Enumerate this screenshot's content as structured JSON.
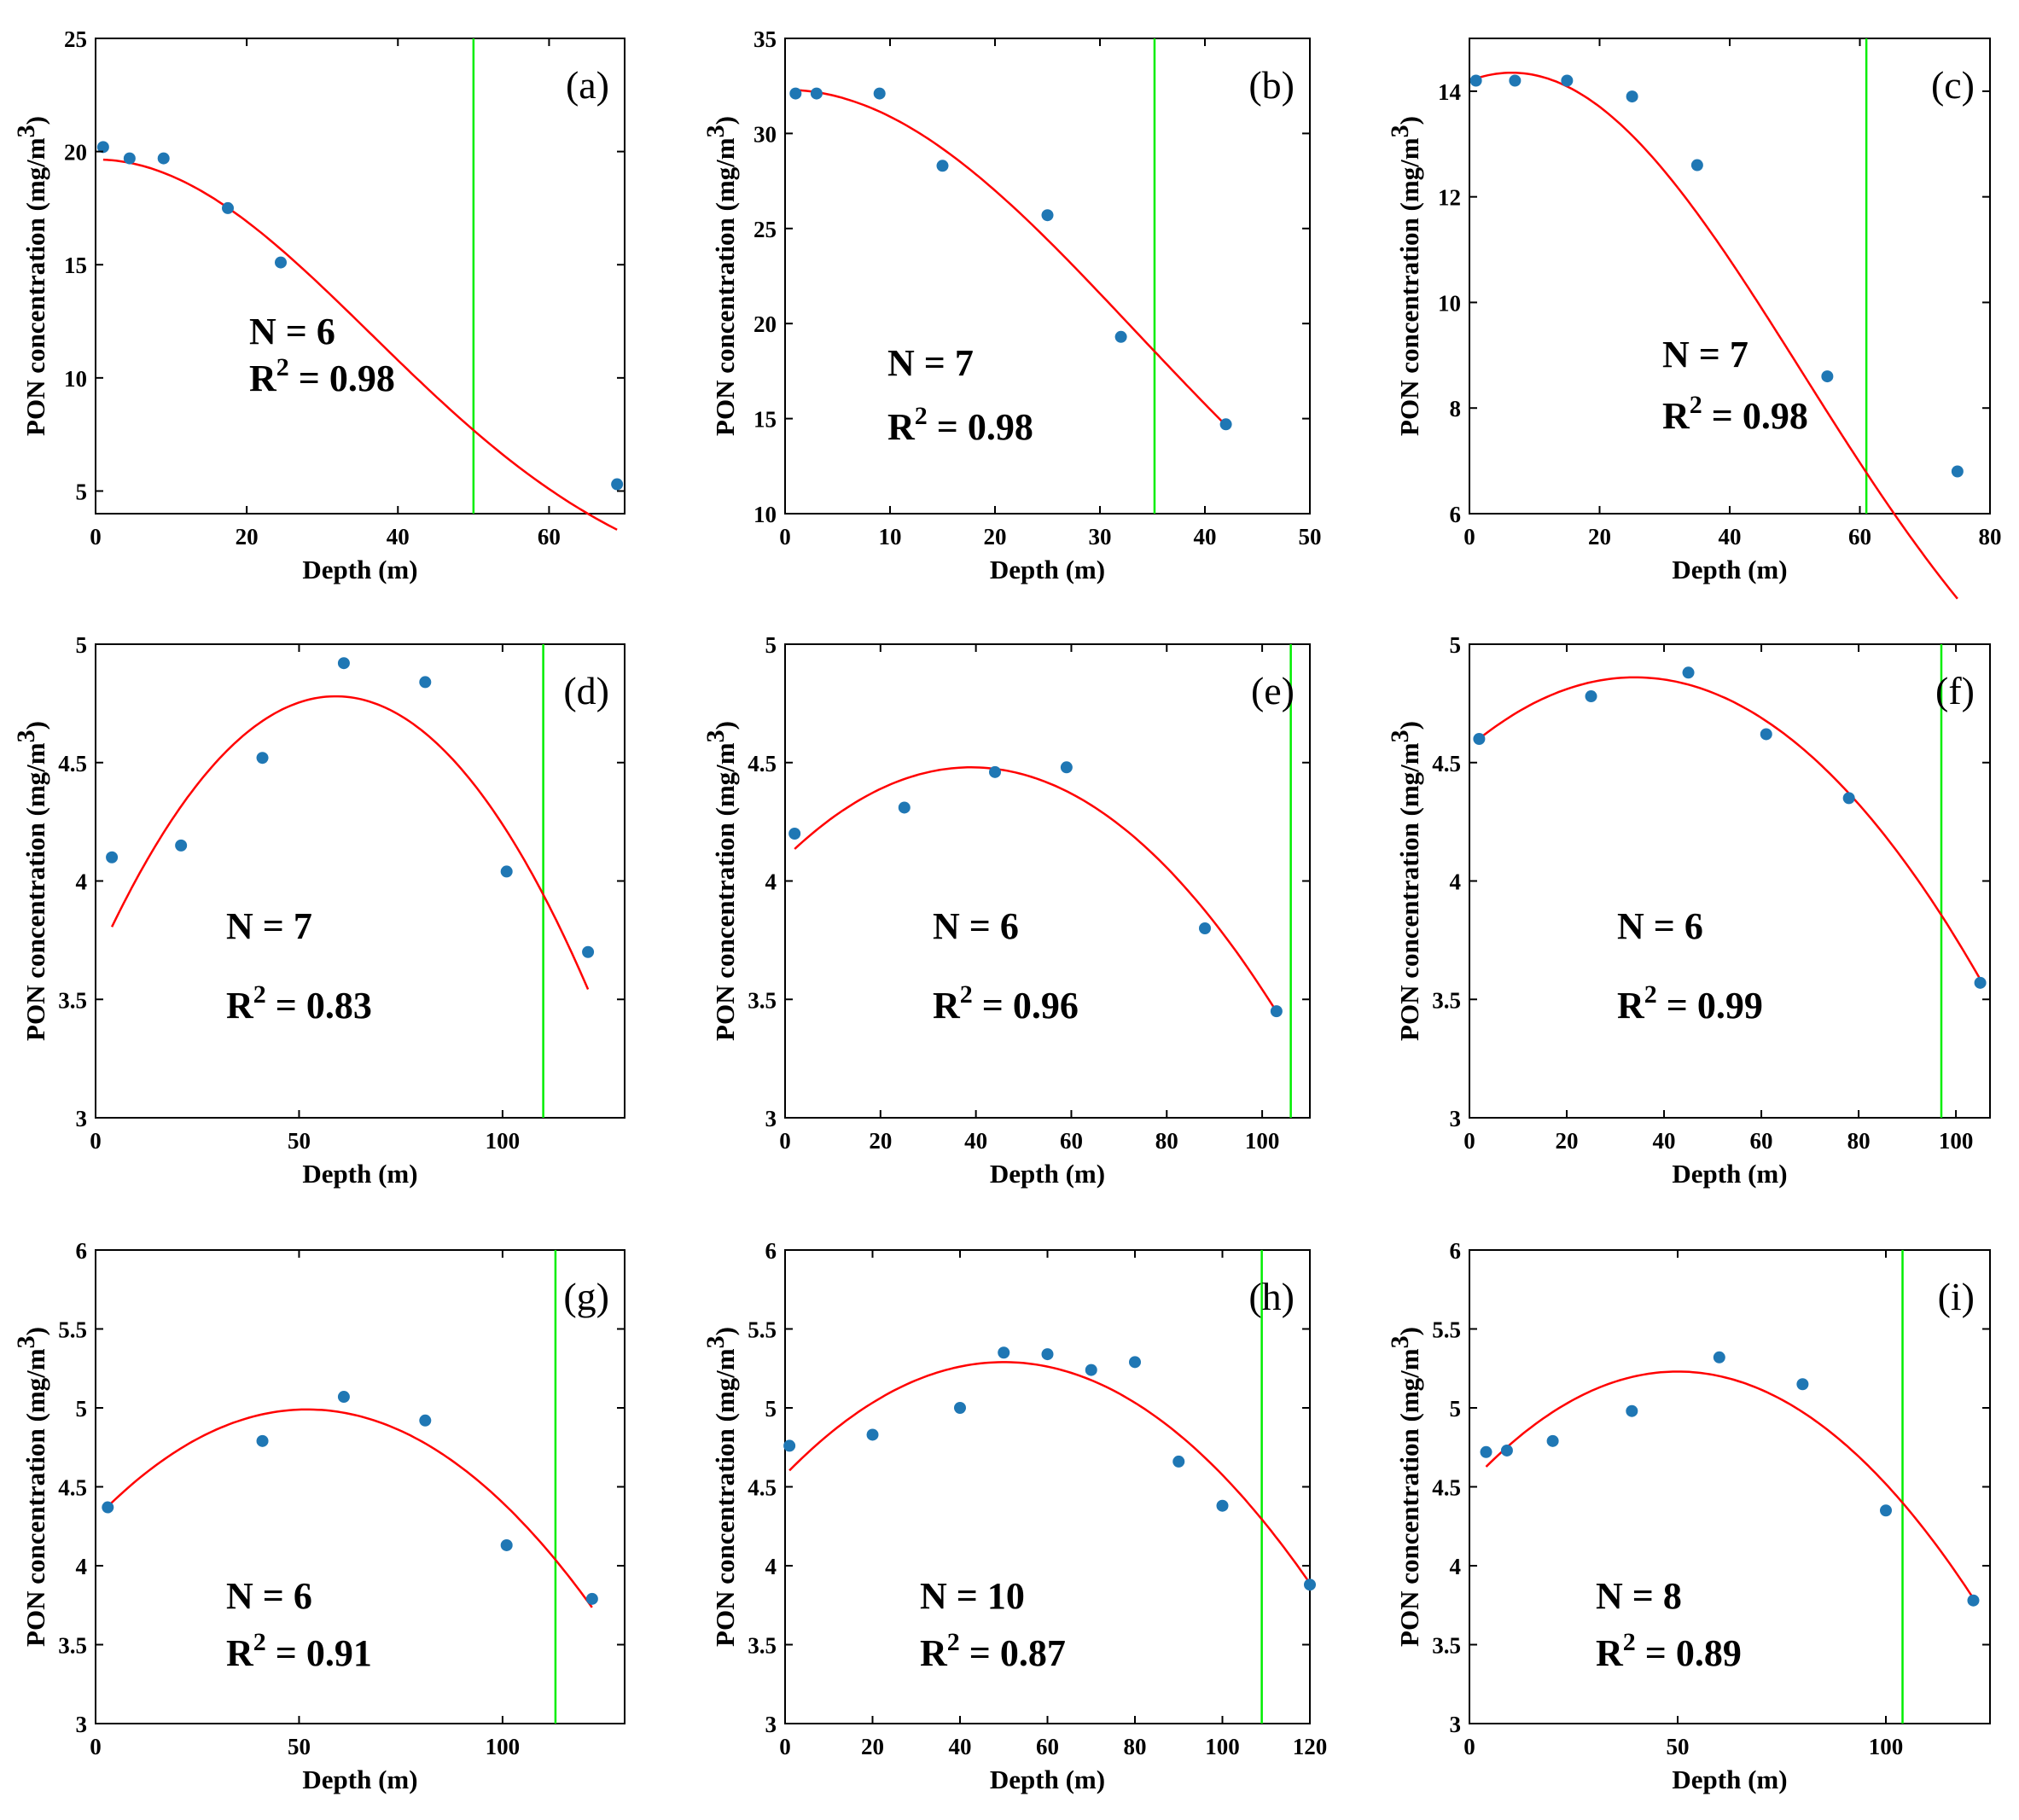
{
  "styles": {
    "point_color": "#1f77b4",
    "fit_color": "#ff0000",
    "zone_color": "#00ee00"
  },
  "chart_data": [
    {
      "type": "scatter",
      "panel": "(a)",
      "xlabel": "Depth (m)",
      "ylabel": "PON concentration (mg/m3)",
      "ylabel_base": "PON concentration (mg/m",
      "ylabel_exp": "3",
      "ylabel_close": ")",
      "xlim": [
        0,
        70
      ],
      "ylim": [
        4,
        25
      ],
      "xticks": [
        0,
        20,
        40,
        60
      ],
      "xtick_labels": [
        "0",
        "20",
        "40",
        "60"
      ],
      "yticks": [
        5,
        10,
        15,
        20,
        25
      ],
      "ytick_labels": [
        "5",
        "10",
        "15",
        "20",
        "25"
      ],
      "points": [
        [
          1,
          20.2
        ],
        [
          4.5,
          19.7
        ],
        [
          9,
          19.7
        ],
        [
          17.5,
          17.5
        ],
        [
          24.5,
          15.1
        ],
        [
          69,
          5.3
        ]
      ],
      "fit": {
        "kind": "gauss",
        "a": 19.65,
        "mu": 0,
        "sigma": 36.5,
        "x_range": [
          1,
          69
        ]
      },
      "vline": 50,
      "n_text": "N = 6",
      "r2_value": " = 0.98"
    },
    {
      "type": "scatter",
      "panel": "(b)",
      "xlabel": "Depth (m)",
      "ylabel": "PON concentration (mg/m3)",
      "ylabel_base": "PON concentration (mg/m",
      "ylabel_exp": "3",
      "ylabel_close": ")",
      "xlim": [
        0,
        50
      ],
      "ylim": [
        10,
        35
      ],
      "xticks": [
        0,
        10,
        20,
        30,
        40,
        50
      ],
      "xtick_labels": [
        "0",
        "10",
        "20",
        "30",
        "40",
        "50"
      ],
      "yticks": [
        10,
        15,
        20,
        25,
        30,
        35
      ],
      "ytick_labels": [
        "10",
        "15",
        "20",
        "25",
        "30",
        "35"
      ],
      "points": [
        [
          1,
          32.1
        ],
        [
          3,
          32.1
        ],
        [
          9,
          32.1
        ],
        [
          15,
          28.3
        ],
        [
          25,
          25.7
        ],
        [
          32,
          19.3
        ],
        [
          42,
          14.7
        ]
      ],
      "fit": {
        "kind": "gauss",
        "a": 32.3,
        "mu": 0,
        "sigma": 33.4,
        "x_range": [
          1,
          42
        ]
      },
      "vline": 35.2,
      "n_text": "N = 7",
      "r2_value": " = 0.98"
    },
    {
      "type": "scatter",
      "panel": "(c)",
      "xlabel": "Depth (m)",
      "ylabel": "PON concentration (mg/m3)",
      "ylabel_base": "PON concentration (mg/m",
      "ylabel_exp": "3",
      "ylabel_close": ")",
      "xlim": [
        0,
        80
      ],
      "ylim": [
        6,
        15
      ],
      "xticks": [
        0,
        20,
        40,
        60,
        80
      ],
      "xtick_labels": [
        "0",
        "20",
        "40",
        "60",
        "80"
      ],
      "yticks": [
        6,
        8,
        10,
        12,
        14
      ],
      "ytick_labels": [
        "6",
        "8",
        "10",
        "12",
        "14"
      ],
      "points": [
        [
          1,
          14.2
        ],
        [
          7,
          14.2
        ],
        [
          15,
          14.2
        ],
        [
          25,
          13.9
        ],
        [
          35,
          12.6
        ],
        [
          55,
          8.6
        ],
        [
          75,
          6.8
        ]
      ],
      "fit": {
        "kind": "gauss",
        "a": 14.35,
        "mu": 6.5,
        "sigma": 44.5,
        "x_range": [
          1,
          75
        ]
      },
      "vline": 61,
      "n_text": "N = 7",
      "r2_value": " = 0.98"
    },
    {
      "type": "scatter",
      "panel": "(d)",
      "xlabel": "Depth (m)",
      "ylabel": "PON concentration (mg/m3)",
      "ylabel_base": "PON concentration (mg/m",
      "ylabel_exp": "3",
      "ylabel_close": ")",
      "xlim": [
        0,
        130
      ],
      "ylim": [
        3,
        5
      ],
      "xticks": [
        0,
        50,
        100
      ],
      "xtick_labels": [
        "0",
        "50",
        "100"
      ],
      "yticks": [
        3,
        3.5,
        4,
        4.5,
        5
      ],
      "ytick_labels": [
        "3",
        "3.5",
        "4",
        "4.5",
        "5"
      ],
      "points": [
        [
          4,
          4.1
        ],
        [
          21,
          4.15
        ],
        [
          41,
          4.52
        ],
        [
          61,
          4.92
        ],
        [
          81,
          4.84
        ],
        [
          101,
          4.04
        ],
        [
          121,
          3.7
        ]
      ],
      "fit": {
        "kind": "quad",
        "peak": 4.78,
        "xv": 59,
        "k": 0.000322,
        "x_range": [
          4,
          121
        ]
      },
      "vline": 110,
      "n_text": "N = 7",
      "r2_value": " = 0.83"
    },
    {
      "type": "scatter",
      "panel": "(e)",
      "xlabel": "Depth (m)",
      "ylabel": "PON concentration (mg/m3)",
      "ylabel_base": "PON concentration (mg/m",
      "ylabel_exp": "3",
      "ylabel_close": ")",
      "xlim": [
        0,
        110
      ],
      "ylim": [
        3,
        5
      ],
      "xticks": [
        0,
        20,
        40,
        60,
        80,
        100
      ],
      "xtick_labels": [
        "0",
        "20",
        "40",
        "60",
        "80",
        "100"
      ],
      "yticks": [
        3,
        3.5,
        4,
        4.5,
        5
      ],
      "ytick_labels": [
        "3",
        "3.5",
        "4",
        "4.5",
        "5"
      ],
      "points": [
        [
          2,
          4.2
        ],
        [
          25,
          4.31
        ],
        [
          44,
          4.46
        ],
        [
          59,
          4.48
        ],
        [
          88,
          3.8
        ],
        [
          103,
          3.45
        ]
      ],
      "fit": {
        "kind": "quad",
        "peak": 4.48,
        "xv": 39,
        "k": 0.000252,
        "x_range": [
          2,
          103
        ]
      },
      "vline": 106,
      "n_text": "N = 6",
      "r2_value": " = 0.96"
    },
    {
      "type": "scatter",
      "panel": "(f)",
      "xlabel": "Depth (m)",
      "ylabel": "PON concentration (mg/m3)",
      "ylabel_base": "PON concentration (mg/m",
      "ylabel_exp": "3",
      "ylabel_close": ")",
      "xlim": [
        0,
        107
      ],
      "ylim": [
        3,
        5
      ],
      "xticks": [
        0,
        20,
        40,
        60,
        80,
        100
      ],
      "xtick_labels": [
        "0",
        "20",
        "40",
        "60",
        "80",
        "100"
      ],
      "yticks": [
        3,
        3.5,
        4,
        4.5,
        5
      ],
      "ytick_labels": [
        "3",
        "3.5",
        "4",
        "4.5",
        "5"
      ],
      "points": [
        [
          2,
          4.6
        ],
        [
          25,
          4.78
        ],
        [
          45,
          4.88
        ],
        [
          61,
          4.62
        ],
        [
          78,
          4.35
        ],
        [
          105,
          3.57
        ]
      ],
      "fit": {
        "kind": "quad",
        "peak": 4.86,
        "xv": 34,
        "k": 0.000253,
        "x_range": [
          2,
          105
        ]
      },
      "vline": 97,
      "n_text": "N = 6",
      "r2_value": " = 0.99"
    },
    {
      "type": "scatter",
      "panel": "(g)",
      "xlabel": "Depth (m)",
      "ylabel": "PON concentration (mg/m3)",
      "ylabel_base": "PON concentration (mg/m",
      "ylabel_exp": "3",
      "ylabel_close": ")",
      "xlim": [
        0,
        130
      ],
      "ylim": [
        3,
        6
      ],
      "xticks": [
        0,
        50,
        100
      ],
      "xtick_labels": [
        "0",
        "50",
        "100"
      ],
      "yticks": [
        3,
        3.5,
        4,
        4.5,
        5,
        5.5,
        6
      ],
      "ytick_labels": [
        "3",
        "3.5",
        "4",
        "4.5",
        "5",
        "5.5",
        "6"
      ],
      "points": [
        [
          3,
          4.37
        ],
        [
          41,
          4.79
        ],
        [
          61,
          5.07
        ],
        [
          81,
          4.92
        ],
        [
          101,
          4.13
        ],
        [
          122,
          3.79
        ]
      ],
      "fit": {
        "kind": "quad",
        "peak": 4.99,
        "xv": 52,
        "k": 0.000256,
        "x_range": [
          3,
          122
        ]
      },
      "vline": 113,
      "n_text": "N = 6",
      "r2_value": " = 0.91"
    },
    {
      "type": "scatter",
      "panel": "(h)",
      "xlabel": "Depth (m)",
      "ylabel": "PON concentration (mg/m3)",
      "ylabel_base": "PON concentration (mg/m",
      "ylabel_exp": "3",
      "ylabel_close": ")",
      "xlim": [
        0,
        120
      ],
      "ylim": [
        3,
        6
      ],
      "xticks": [
        0,
        20,
        40,
        60,
        80,
        100,
        120
      ],
      "xtick_labels": [
        "0",
        "20",
        "40",
        "60",
        "80",
        "100",
        "120"
      ],
      "yticks": [
        3,
        3.5,
        4,
        4.5,
        5,
        5.5,
        6
      ],
      "ytick_labels": [
        "3",
        "3.5",
        "4",
        "4.5",
        "5",
        "5.5",
        "6"
      ],
      "points": [
        [
          1,
          4.76
        ],
        [
          20,
          4.83
        ],
        [
          40,
          5.0
        ],
        [
          50,
          5.35
        ],
        [
          60,
          5.34
        ],
        [
          70,
          5.24
        ],
        [
          80,
          5.29
        ],
        [
          90,
          4.66
        ],
        [
          100,
          4.38
        ],
        [
          120,
          3.88
        ]
      ],
      "fit": {
        "kind": "quad",
        "peak": 5.29,
        "xv": 50,
        "k": 0.000286,
        "x_range": [
          1,
          120
        ]
      },
      "vline": 109,
      "n_text": "N = 10",
      "r2_value": " = 0.87"
    },
    {
      "type": "scatter",
      "panel": "(i)",
      "xlabel": "Depth (m)",
      "ylabel": "PON concentration (mg/m3)",
      "ylabel_base": "PON concentration (mg/m",
      "ylabel_exp": "3",
      "ylabel_close": ")",
      "xlim": [
        0,
        125
      ],
      "ylim": [
        3,
        6
      ],
      "xticks": [
        0,
        50,
        100
      ],
      "xtick_labels": [
        "0",
        "50",
        "100"
      ],
      "yticks": [
        3,
        3.5,
        4,
        4.5,
        5,
        5.5,
        6
      ],
      "ytick_labels": [
        "3",
        "3.5",
        "4",
        "4.5",
        "5",
        "5.5",
        "6"
      ],
      "points": [
        [
          4,
          4.72
        ],
        [
          9,
          4.73
        ],
        [
          20,
          4.79
        ],
        [
          39,
          4.98
        ],
        [
          60,
          5.32
        ],
        [
          80,
          5.15
        ],
        [
          100,
          4.35
        ],
        [
          121,
          3.78
        ]
      ],
      "fit": {
        "kind": "quad",
        "peak": 5.23,
        "xv": 50,
        "k": 0.000285,
        "x_range": [
          4,
          121
        ]
      },
      "vline": 104,
      "n_text": "N = 8",
      "r2_value": " = 0.89"
    }
  ]
}
